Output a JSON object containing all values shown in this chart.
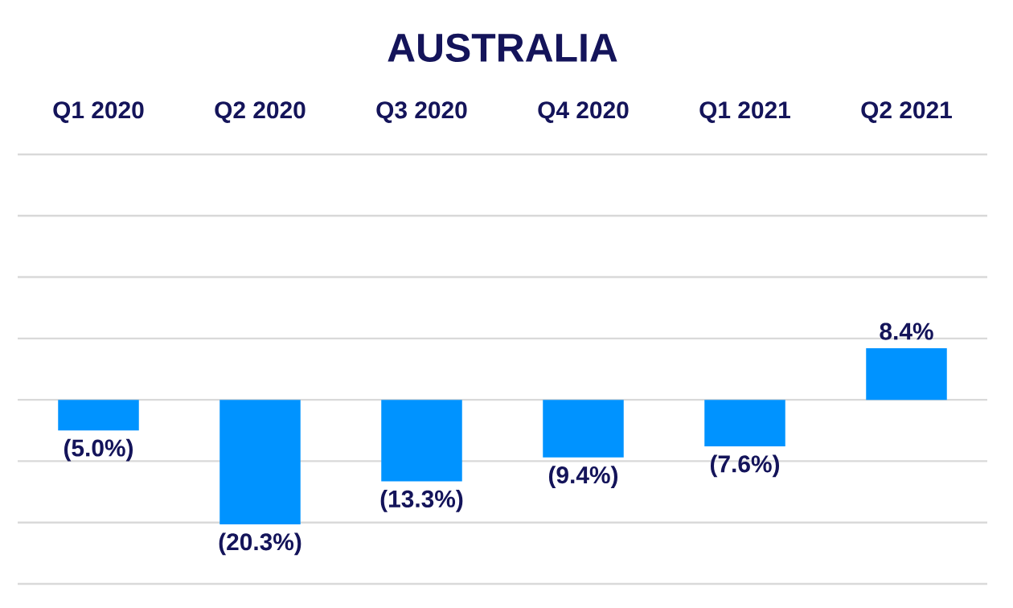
{
  "chart_data": {
    "type": "bar",
    "title": "AUSTRALIA",
    "categories": [
      "Q1 2020",
      "Q2 2020",
      "Q3 2020",
      "Q4 2020",
      "Q1 2021",
      "Q2 2021"
    ],
    "values": [
      -5.0,
      -20.3,
      -13.3,
      -9.4,
      -7.6,
      8.4
    ],
    "value_labels": [
      "(5.0%)",
      "(20.3%)",
      "(13.3%)",
      "(9.4%)",
      "(7.6%)",
      "8.4%"
    ],
    "color": "#0093ff",
    "ylim": [
      -30,
      40
    ],
    "yticks": [
      {
        "value": -30,
        "label": null
      },
      {
        "value": -20,
        "label": null
      },
      {
        "value": -10,
        "label": null
      },
      {
        "value": 0,
        "label": null
      },
      {
        "value": 10,
        "label": null
      },
      {
        "value": 20,
        "label": null
      },
      {
        "value": 30,
        "label": null
      },
      {
        "value": 40,
        "label": null
      }
    ],
    "grid": "y",
    "tick_labels": "x"
  }
}
